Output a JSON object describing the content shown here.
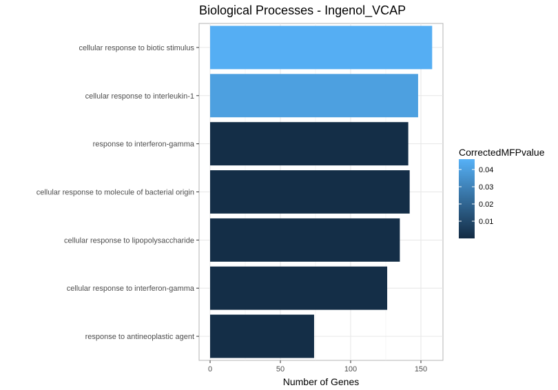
{
  "chart_data": {
    "type": "bar",
    "orientation": "horizontal",
    "title": "Biological Processes - Ingenol_VCAP",
    "xlabel": "Number of Genes",
    "ylabel": "",
    "xlim": [
      0,
      165
    ],
    "xticks": [
      0,
      50,
      100,
      150
    ],
    "grid": true,
    "categories": [
      "cellular response to biotic stimulus",
      "cellular response to interleukin-1",
      "response to interferon-gamma",
      "cellular response to molecule of bacterial origin",
      "cellular response to lipopolysaccharide",
      "cellular response to interferon-gamma",
      "response to antineoplastic agent"
    ],
    "values": [
      158,
      148,
      141,
      142,
      135,
      126,
      74
    ],
    "color_values": [
      0.045,
      0.04,
      0.001,
      0.001,
      0.001,
      0.001,
      0.001
    ],
    "legend": {
      "title": "CorrectedMFPvalue",
      "position": "right",
      "ticks": [
        "0.04",
        "0.03",
        "0.02",
        "0.01"
      ],
      "tick_values": [
        0.04,
        0.03,
        0.02,
        0.01
      ],
      "range": [
        0.0,
        0.046
      ],
      "low_color": "#132B43",
      "high_color": "#56B1F7"
    }
  }
}
